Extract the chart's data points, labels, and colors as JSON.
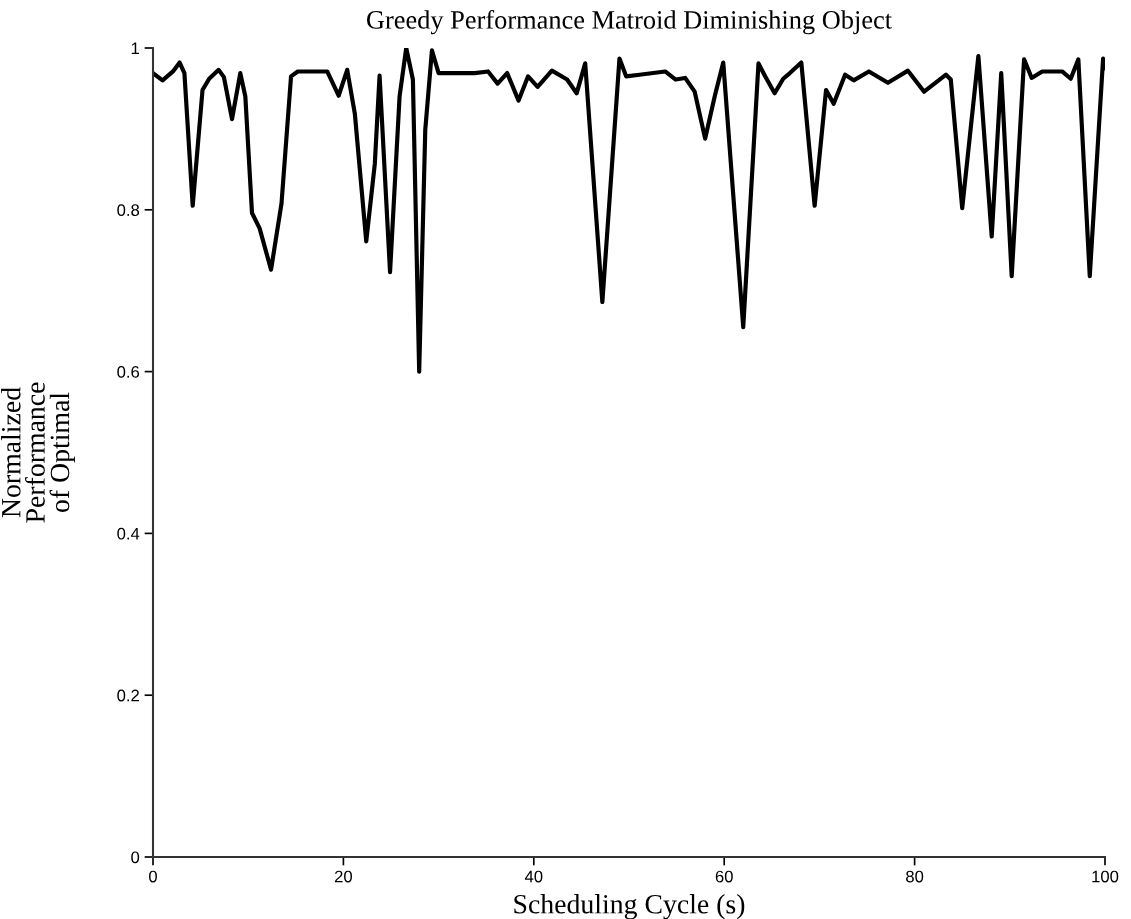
{
  "chart_data": {
    "type": "line",
    "title": "Greedy Performance Matroid Diminishing Object",
    "xlabel": "Scheduling Cycle (s)",
    "ylabel": "Normalized\nPerformance\nof Optimal",
    "x": [
      0,
      1.0,
      2.1,
      2.8,
      3.3,
      4.17,
      5.2,
      5.9,
      6.9,
      7.45,
      8.3,
      9.17,
      9.7,
      10.4,
      11.2,
      12.4,
      13.5,
      14.5,
      15.2,
      18.3,
      19.5,
      20.4,
      21.2,
      22.4,
      23.3,
      23.8,
      24.9,
      25.9,
      26.6,
      27.3,
      27.96,
      28.6,
      29.3,
      30.0,
      33.8,
      35.2,
      36.2,
      37.2,
      38.4,
      39.4,
      40.4,
      41.9,
      43.5,
      44.5,
      45.4,
      47.2,
      49.0,
      49.7,
      51.1,
      53.8,
      54.9,
      55.9,
      56.9,
      58.0,
      59.0,
      59.9,
      62.0,
      63.6,
      64.3,
      65.3,
      66.2,
      66.9,
      68.1,
      69.5,
      70.7,
      71.5,
      72.7,
      73.6,
      75.2,
      77.2,
      79.3,
      81.0,
      83.3,
      83.8,
      85.0,
      86.7,
      88.1,
      89.1,
      90.2,
      91.5,
      92.3,
      93.4,
      95.5,
      96.4,
      97.2,
      98.4,
      99.8,
      100
    ],
    "series": [
      {
        "color": "#000000",
        "values": [
          0.969,
          0.96,
          0.971,
          0.982,
          0.969,
          0.805,
          0.948,
          0.962,
          0.973,
          0.964,
          0.912,
          0.969,
          0.94,
          0.796,
          0.777,
          0.726,
          0.808,
          0.965,
          0.971,
          0.971,
          0.941,
          0.973,
          0.919,
          0.761,
          0.857,
          0.966,
          0.723,
          0.94,
          1.0,
          0.961,
          0.6,
          0.899,
          0.997,
          0.969,
          0.969,
          0.971,
          0.956,
          0.969,
          0.935,
          0.965,
          0.952,
          0.972,
          0.961,
          0.944,
          0.981,
          0.686,
          0.987,
          0.965,
          0.967,
          0.971,
          0.961,
          0.963,
          0.946,
          0.888,
          0.94,
          0.982,
          0.655,
          0.981,
          0.965,
          0.944,
          0.962,
          0.969,
          0.982,
          0.805,
          0.948,
          0.931,
          0.967,
          0.96,
          0.971,
          0.957,
          0.972,
          0.946,
          0.967,
          0.961,
          0.802,
          0.99,
          0.767,
          0.969,
          0.718,
          0.986,
          0.963,
          0.971,
          0.971,
          0.962,
          0.986,
          0.718,
          0.987,
          0.975
        ]
      }
    ],
    "xlim": [
      0,
      100
    ],
    "xticks": [
      0,
      20,
      40,
      60,
      80,
      100
    ],
    "ylim": [
      0,
      1
    ],
    "yticks": [
      0,
      0.2,
      0.4,
      0.6,
      0.8,
      1
    ],
    "grid": false,
    "marker": "none",
    "line_style": "solid"
  }
}
